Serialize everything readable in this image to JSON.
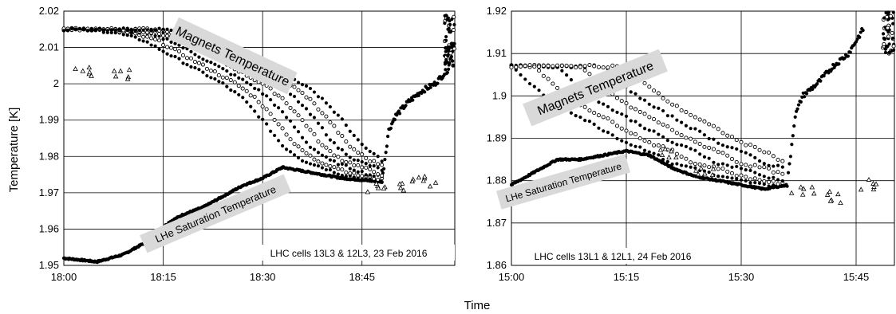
{
  "figure": {
    "ylabel": "Temperature [K]",
    "xlabel": "Time"
  },
  "colors": {
    "grid": "#000000",
    "marker_filled": "#000000",
    "marker_open_stroke": "#000000",
    "label_box": "#d9d9d9"
  },
  "chart_data": [
    {
      "type": "scatter",
      "title": "",
      "xlabel": "Time",
      "ylabel": "Temperature [K]",
      "xlim": [
        "18:00",
        "18:59"
      ],
      "ylim": [
        1.95,
        2.02
      ],
      "x_ticks": [
        "18:00",
        "18:15",
        "18:30",
        "18:45"
      ],
      "y_ticks": [
        "1.95",
        "1.96",
        "1.97",
        "1.98",
        "1.99",
        "2",
        "2.01",
        "2.02"
      ],
      "grid": true,
      "legend": "none",
      "annotations": [
        "Magnets Temperature",
        "LHe Saturation Temperature",
        "LHC cells 13L3 & 12L3, 23 Feb 2016"
      ],
      "series": [
        {
          "name": "LHe Saturation Temperature",
          "x": [
            "18:00",
            "18:05",
            "18:09",
            "18:12",
            "18:14",
            "18:16",
            "18:18",
            "18:21",
            "18:24",
            "18:27",
            "18:30",
            "18:33",
            "18:36",
            "18:39",
            "18:42",
            "18:45",
            "18:48"
          ],
          "values": [
            1.952,
            1.951,
            1.953,
            1.956,
            1.959,
            1.962,
            1.964,
            1.966,
            1.969,
            1.972,
            1.974,
            1.977,
            1.976,
            1.975,
            1.974,
            1.9735,
            1.973
          ]
        },
        {
          "name": "Magnets Temperature",
          "x": [
            "18:00",
            "18:04",
            "18:08",
            "18:12",
            "18:15",
            "18:18",
            "18:21",
            "18:24",
            "18:27",
            "18:30",
            "18:33",
            "18:36",
            "18:39",
            "18:42",
            "18:45",
            "18:48"
          ],
          "values": [
            2.015,
            2.015,
            2.014,
            2.012,
            2.009,
            2.006,
            2.003,
            2.0,
            1.996,
            1.99,
            1.983,
            1.979,
            1.977,
            1.975,
            1.974,
            1.973
          ]
        },
        {
          "name": "",
          "x": [
            "18:48",
            "18:49",
            "18:50",
            "18:52",
            "18:54",
            "18:56",
            "18:58",
            "18:59"
          ],
          "values": [
            1.973,
            1.987,
            1.991,
            1.995,
            1.998,
            2.0,
            2.004,
            2.012
          ]
        }
      ]
    },
    {
      "type": "scatter",
      "title": "",
      "xlabel": "Time",
      "ylabel": "",
      "xlim": [
        "15:00",
        "15:50"
      ],
      "ylim": [
        1.86,
        1.92
      ],
      "x_ticks": [
        "15:00",
        "15:15",
        "15:30",
        "15:45"
      ],
      "y_ticks": [
        "1.86",
        "1.87",
        "1.88",
        "1.89",
        "1.9",
        "1.91",
        "1.92"
      ],
      "grid": true,
      "legend": "none",
      "annotations": [
        "Magnets Temperature",
        "LHe Saturation Temperature",
        "LHC cells 13L1 & 12L1, 24 Feb 2016"
      ],
      "series": [
        {
          "name": "LHe Saturation Temperature",
          "x": [
            "15:00",
            "15:03",
            "15:06",
            "15:09",
            "15:12",
            "15:15",
            "15:18",
            "15:21",
            "15:24",
            "15:27",
            "15:30",
            "15:33",
            "15:36"
          ],
          "values": [
            1.879,
            1.882,
            1.885,
            1.885,
            1.886,
            1.887,
            1.886,
            1.883,
            1.881,
            1.88,
            1.879,
            1.878,
            1.879
          ]
        },
        {
          "name": "Magnets Temperature",
          "x": [
            "15:00",
            "15:03",
            "15:06",
            "15:09",
            "15:12",
            "15:15",
            "15:18",
            "15:21",
            "15:24",
            "15:27",
            "15:30",
            "15:33",
            "15:36"
          ],
          "values": [
            1.907,
            1.902,
            1.898,
            1.895,
            1.892,
            1.889,
            1.887,
            1.884,
            1.883,
            1.881,
            1.88,
            1.879,
            1.879
          ]
        },
        {
          "name": "",
          "x": [
            "15:36",
            "15:37",
            "15:38",
            "15:40",
            "15:42",
            "15:44",
            "15:45",
            "15:46"
          ],
          "values": [
            1.879,
            1.895,
            1.9,
            1.903,
            1.907,
            1.91,
            1.913,
            1.916
          ]
        }
      ]
    }
  ]
}
